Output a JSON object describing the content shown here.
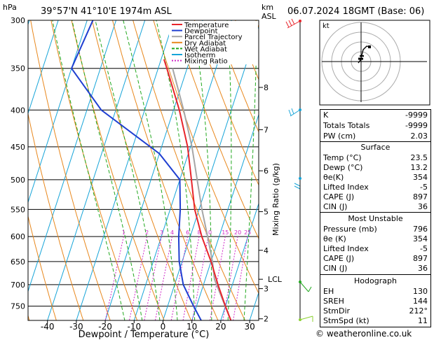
{
  "header": {
    "location": "39°57'N  41°10'E  1974m  ASL",
    "datetime": "06.07.2024  18GMT  (Base: 06)",
    "hpa_unit": "hPa",
    "km_unit": "km",
    "asl_unit": "ASL"
  },
  "chart_data": {
    "type": "skewt-logp",
    "xlabel": "Dewpoint / Temperature (°C)",
    "ylabel_right": "Mixing Ratio (g/kg)",
    "temperature_ticks": [
      -40,
      -30,
      -20,
      -10,
      0,
      10,
      20,
      30
    ],
    "pressure_range": [
      300,
      785
    ],
    "pressure_levels": [
      300,
      350,
      400,
      450,
      500,
      550,
      600,
      650,
      700,
      750
    ],
    "altitude_km": [
      {
        "label": "8",
        "p": 372
      },
      {
        "label": "7",
        "p": 426
      },
      {
        "label": "6",
        "p": 486
      },
      {
        "label": "5",
        "p": 554
      },
      {
        "label": "4",
        "p": 627
      },
      {
        "label": "3",
        "p": 709
      },
      {
        "label": "2",
        "p": 781
      }
    ],
    "lcl": {
      "label": "LCL",
      "p": 688
    },
    "mixing_ratio_labels": [
      "1",
      "2",
      "3",
      "4",
      "6",
      "8",
      "10",
      "15",
      "20",
      "25"
    ],
    "mixing_ratio_values": [
      1,
      2,
      3,
      4,
      6,
      8,
      10,
      15,
      20,
      25
    ],
    "legend": [
      "Temperature",
      "Dewpoint",
      "Parcel Trajectory",
      "Dry Adiabat",
      "Wet Adiabat",
      "Isotherm",
      "Mixing Ratio"
    ],
    "temperature_profile": [
      {
        "p": 785,
        "t": 23.5
      },
      {
        "p": 750,
        "t": 20
      },
      {
        "p": 700,
        "t": 15
      },
      {
        "p": 650,
        "t": 10
      },
      {
        "p": 600,
        "t": 4
      },
      {
        "p": 550,
        "t": -1.5
      },
      {
        "p": 500,
        "t": -6
      },
      {
        "p": 450,
        "t": -11
      },
      {
        "p": 400,
        "t": -18
      },
      {
        "p": 350,
        "t": -27
      },
      {
        "p": 340,
        "t": -29
      }
    ],
    "dewpoint_profile": [
      {
        "p": 785,
        "t": 13.2
      },
      {
        "p": 750,
        "t": 9
      },
      {
        "p": 700,
        "t": 3
      },
      {
        "p": 650,
        "t": -1
      },
      {
        "p": 600,
        "t": -4
      },
      {
        "p": 550,
        "t": -6.5
      },
      {
        "p": 500,
        "t": -10
      },
      {
        "p": 460,
        "t": -20
      },
      {
        "p": 400,
        "t": -45
      },
      {
        "p": 350,
        "t": -60
      },
      {
        "p": 300,
        "t": -58
      }
    ],
    "parcel_profile": [
      {
        "p": 785,
        "t": 23.5
      },
      {
        "p": 688,
        "t": 13.2
      },
      {
        "p": 650,
        "t": 10.5
      },
      {
        "p": 600,
        "t": 6
      },
      {
        "p": 550,
        "t": 1
      },
      {
        "p": 500,
        "t": -4
      },
      {
        "p": 450,
        "t": -9.5
      },
      {
        "p": 400,
        "t": -16.5
      },
      {
        "p": 350,
        "t": -25
      }
    ],
    "colors": {
      "temperature": "#e8242b",
      "dewpoint": "#1f3fd1",
      "parcel": "#a6a6a6",
      "dry_adiabat": "#e8871c",
      "wet_adiabat": "#21a81e",
      "isotherm": "#16a4d8",
      "mixing_ratio": "#d02ac8"
    }
  },
  "hodograph": {
    "label": "kt"
  },
  "indices": [
    {
      "label": "K",
      "value": "-9999"
    },
    {
      "label": "Totals Totals",
      "value": "-9999"
    },
    {
      "label": "PW (cm)",
      "value": "2.03"
    }
  ],
  "surface": {
    "title": "Surface",
    "rows": [
      {
        "label": "Temp (°C)",
        "value": "23.5"
      },
      {
        "label": "Dewp (°C)",
        "value": "13.2"
      },
      {
        "label": "θe(K)",
        "value": "354"
      },
      {
        "label": "Lifted Index",
        "value": "-5"
      },
      {
        "label": "CAPE (J)",
        "value": "897"
      },
      {
        "label": "CIN (J)",
        "value": "36"
      }
    ]
  },
  "most_unstable": {
    "title": "Most Unstable",
    "rows": [
      {
        "label": "Pressure (mb)",
        "value": "796"
      },
      {
        "label": "θe (K)",
        "value": "354"
      },
      {
        "label": "Lifted Index",
        "value": "-5"
      },
      {
        "label": "CAPE (J)",
        "value": "897"
      },
      {
        "label": "CIN (J)",
        "value": "36"
      }
    ]
  },
  "hodograph_params": {
    "title": "Hodograph",
    "rows": [
      {
        "label": "EH",
        "value": "130"
      },
      {
        "label": "SREH",
        "value": "144"
      },
      {
        "label": "StmDir",
        "value": "212°"
      },
      {
        "label": "StmSpd (kt)",
        "value": "11"
      }
    ]
  },
  "footer": {
    "credit": "© weatheronline.co.uk"
  }
}
